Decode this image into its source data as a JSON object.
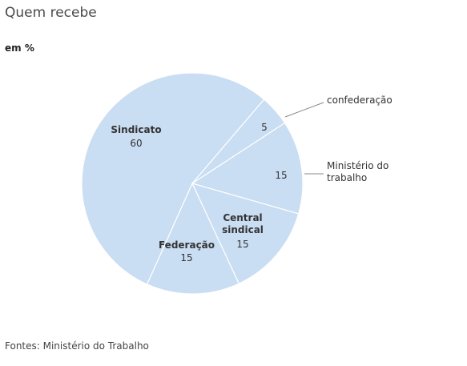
{
  "chart_data": {
    "type": "pie",
    "title": "Quem recebe",
    "subtitle": "em %",
    "source": "Fontes: Ministério do Trabalho",
    "slices": [
      {
        "label": "confederação",
        "value": 5,
        "label_position": "outside"
      },
      {
        "label": "Ministério do trabalho",
        "label_lines": [
          "Ministério do",
          "trabalho"
        ],
        "value": 15,
        "label_position": "outside"
      },
      {
        "label": "Central sindical",
        "label_lines": [
          "Central",
          "sindical"
        ],
        "value": 15,
        "label_position": "inside"
      },
      {
        "label": "Federação",
        "label_lines": [
          "Federação"
        ],
        "value": 15,
        "label_position": "inside"
      },
      {
        "label": "Sindicato",
        "label_lines": [
          "Sindicato"
        ],
        "value": 60,
        "label_position": "inside"
      }
    ],
    "colors": {
      "slice_fill": "#c9ddf3",
      "slice_stroke": "#ffffff",
      "leader": "#888888"
    }
  }
}
